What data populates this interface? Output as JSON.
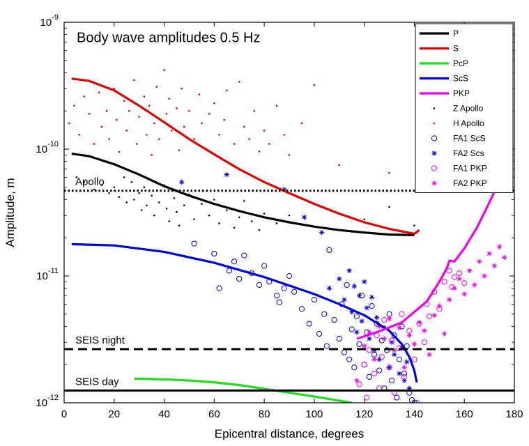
{
  "chart_data": {
    "type": "line",
    "title": "Body wave amplitudes 0.5 Hz",
    "xlabel": "Epicentral distance, degrees",
    "ylabel": "Amplitude, m",
    "xlim": [
      0,
      180
    ],
    "ylim": [
      1e-12,
      1e-09
    ],
    "yscale": "log",
    "xticks": [
      0,
      20,
      40,
      60,
      80,
      100,
      120,
      140,
      160,
      180
    ],
    "yticks": [
      {
        "value": 1e-12,
        "base": "10",
        "exp": "-12"
      },
      {
        "value": 1e-11,
        "base": "10",
        "exp": "-11"
      },
      {
        "value": 1e-10,
        "base": "10",
        "exp": "-10"
      },
      {
        "value": 1e-09,
        "base": "10",
        "exp": "-9"
      }
    ],
    "grid": false,
    "legend_position": "top-right",
    "series": [
      {
        "name": "P",
        "kind": "line",
        "color": "#000000",
        "x": [
          3,
          10,
          20,
          30,
          40,
          50,
          60,
          70,
          80,
          90,
          100,
          110,
          120,
          130,
          140
        ],
        "y": [
          9.2e-11,
          8.8e-11,
          7.6e-11,
          6.3e-11,
          5.1e-11,
          4.3e-11,
          3.7e-11,
          3.25e-11,
          2.9e-11,
          2.65e-11,
          2.45e-11,
          2.3e-11,
          2.2e-11,
          2.12e-11,
          2.1e-11
        ]
      },
      {
        "name": "S",
        "kind": "line",
        "color": "#e00000",
        "x": [
          3,
          10,
          20,
          30,
          40,
          50,
          60,
          70,
          80,
          90,
          100,
          110,
          120,
          130,
          140,
          142
        ],
        "y": [
          3.6e-10,
          3.45e-10,
          2.9e-10,
          2.2e-10,
          1.63e-10,
          1.2e-10,
          9.1e-11,
          6.95e-11,
          5.5e-11,
          4.5e-11,
          3.7e-11,
          3.1e-11,
          2.65e-11,
          2.35e-11,
          2.15e-11,
          2.3e-11
        ]
      },
      {
        "name": "PcP",
        "kind": "line",
        "color": "#22dd22",
        "x": [
          28,
          40,
          50,
          60,
          70,
          80,
          90,
          100,
          110,
          115
        ],
        "y": [
          1.55e-12,
          1.53e-12,
          1.5e-12,
          1.45e-12,
          1.38e-12,
          1.29e-12,
          1.2e-12,
          1.12e-12,
          1.04e-12,
          1e-12
        ]
      },
      {
        "name": "ScS",
        "kind": "line",
        "color": "#0000dd",
        "x": [
          3,
          20,
          40,
          60,
          80,
          100,
          110,
          120,
          130,
          135,
          138,
          140,
          141
        ],
        "y": [
          1.78e-11,
          1.74e-11,
          1.55e-11,
          1.27e-11,
          9.8e-12,
          7.2e-12,
          6e-12,
          4.9e-12,
          3.7e-12,
          2.9e-12,
          2.3e-12,
          1.8e-12,
          1.45e-12
        ]
      },
      {
        "name": "PKP",
        "kind": "line",
        "color": "#ee00ee",
        "x": [
          117,
          125,
          135,
          145,
          150,
          153,
          154,
          156,
          160,
          165,
          170,
          175,
          178
        ],
        "y": [
          3.2e-12,
          3.6e-12,
          4.3e-12,
          6.3e-12,
          9e-12,
          1.15e-11,
          1.32e-11,
          1.3e-11,
          1.65e-11,
          2.4e-11,
          3.8e-11,
          6.2e-11,
          9.5e-11
        ]
      },
      {
        "name": "Z Apollo",
        "kind": "scatter",
        "marker": "dot",
        "color": "#000000",
        "x": [
          5,
          8,
          12,
          15,
          18,
          20,
          22,
          24,
          25,
          27,
          28,
          30,
          31,
          32,
          33,
          35,
          36,
          38,
          40,
          41,
          42,
          44,
          45,
          46,
          48,
          50,
          52,
          55,
          58,
          60,
          62,
          65,
          68,
          70,
          72,
          75,
          78,
          80,
          85,
          90,
          120,
          130,
          140
        ],
        "y": [
          6e-11,
          5.5e-11,
          4.8e-11,
          5.2e-11,
          4.5e-11,
          5e-11,
          4.2e-11,
          6e-11,
          3.8e-11,
          5.5e-11,
          4e-11,
          4.5e-11,
          3.3e-11,
          5e-11,
          3.6e-11,
          4.3e-11,
          3e-11,
          3.8e-11,
          5.2e-11,
          3.4e-11,
          2.7e-11,
          4.1e-11,
          3.2e-11,
          2.5e-11,
          3.6e-11,
          4.4e-11,
          2.8e-11,
          3.7e-11,
          3e-11,
          4e-11,
          2.6e-11,
          3.3e-11,
          2.4e-11,
          2.9e-11,
          3.9e-11,
          2.7e-11,
          2.3e-11,
          3.1e-11,
          2.6e-11,
          3e-11,
          2.8e-11,
          3.5e-11,
          2.5e-11
        ]
      },
      {
        "name": "H Apollo",
        "kind": "scatter",
        "marker": "dot",
        "color": "#e00000",
        "x": [
          2,
          4,
          6,
          8,
          10,
          12,
          14,
          15,
          17,
          18,
          20,
          21,
          22,
          24,
          25,
          26,
          28,
          29,
          30,
          32,
          33,
          34,
          35,
          36,
          37,
          38,
          40,
          41,
          42,
          43,
          45,
          46,
          47,
          48,
          50,
          52,
          54,
          55,
          57,
          58,
          60,
          62,
          64,
          65,
          68,
          70,
          72,
          74,
          76,
          78,
          80,
          82,
          85,
          88,
          90,
          95,
          100,
          110,
          130
        ],
        "y": [
          1.6e-10,
          2.2e-10,
          1.3e-10,
          2.6e-10,
          1.9e-10,
          1.1e-10,
          2.8e-10,
          1.5e-10,
          2e-10,
          1.2e-10,
          3e-10,
          1.7e-10,
          9.5e-11,
          2.4e-10,
          1.4e-10,
          2e-10,
          3.5e-10,
          1.1e-10,
          1.8e-10,
          2.6e-10,
          1.3e-10,
          2.2e-10,
          9e-11,
          1.6e-10,
          3.1e-10,
          1.2e-10,
          4.2e-10,
          1.9e-10,
          2.5e-10,
          1.4e-10,
          2.1e-10,
          9.8e-11,
          3e-10,
          1.5e-10,
          2e-10,
          1.2e-10,
          2.7e-10,
          1.6e-10,
          1e-10,
          1.9e-10,
          2.3e-10,
          1.3e-10,
          1.7e-10,
          2.9e-10,
          1.1e-10,
          3.4e-10,
          1.5e-10,
          1.2e-10,
          2e-10,
          9.6e-11,
          1.4e-10,
          1.1e-10,
          2.2e-10,
          1.3e-10,
          9e-11,
          1.6e-10,
          3.2e-10,
          7.5e-11,
          6.5e-11
        ]
      },
      {
        "name": "FA1 ScS",
        "kind": "scatter",
        "marker": "circle",
        "color": "#0000dd",
        "x": [
          52,
          60,
          62,
          66,
          68,
          70,
          72,
          75,
          78,
          80,
          82,
          85,
          86,
          88,
          90,
          92,
          95,
          98,
          100,
          102,
          104,
          105,
          106,
          108,
          110,
          111,
          112,
          113,
          114,
          115,
          116,
          117,
          118,
          119,
          120,
          121,
          122,
          123,
          124,
          125,
          126,
          127,
          128,
          129,
          130,
          131,
          132,
          133,
          134,
          135,
          136,
          137,
          138,
          139,
          140
        ],
        "y": [
          1.8e-11,
          1.5e-11,
          8e-12,
          1.1e-11,
          1.3e-11,
          9.5e-12,
          1.45e-11,
          1.05e-11,
          8.5e-12,
          1.2e-11,
          9e-12,
          7e-12,
          6.2e-12,
          8e-12,
          1e-11,
          7.5e-12,
          5.5e-12,
          4.2e-12,
          6.5e-12,
          3.5e-12,
          5e-12,
          2.8e-12,
          1.6e-11,
          4.5e-12,
          3.2e-12,
          6e-12,
          2.5e-12,
          8.5e-12,
          2.2e-12,
          3.8e-12,
          1.9e-12,
          4.8e-12,
          2.9e-12,
          7e-12,
          2e-12,
          3.6e-12,
          1.6e-12,
          5.8e-12,
          2.4e-12,
          4.2e-12,
          1.8e-12,
          3.1e-12,
          1.3e-12,
          2.6e-12,
          5e-12,
          1.5e-12,
          3.4e-12,
          1.1e-12,
          2.2e-12,
          4e-12,
          1.7e-12,
          2.8e-12,
          1.2e-12,
          1.05e-12,
          1e-12
        ]
      },
      {
        "name": "FA2 Scs",
        "kind": "scatter",
        "marker": "asterisk",
        "color": "#0000dd",
        "x": [
          47,
          65,
          88,
          96,
          103,
          106,
          110,
          112,
          114,
          115,
          116,
          117,
          118,
          119,
          120,
          121,
          122,
          123,
          124,
          125,
          126,
          128,
          130,
          131,
          132,
          134,
          135,
          136,
          137,
          138
        ],
        "y": [
          5.5e-11,
          6.3e-11,
          4.8e-11,
          2.9e-11,
          2.2e-11,
          8e-12,
          9.5e-12,
          6.5e-12,
          1.1e-11,
          5.2e-12,
          8.3e-12,
          3.6e-12,
          7e-12,
          4.4e-12,
          9e-12,
          5.6e-12,
          3.2e-12,
          6.8e-12,
          2.6e-12,
          4.7e-12,
          2.2e-12,
          3.9e-12,
          1.9e-12,
          3e-12,
          2.4e-12,
          1.7e-12,
          2.7e-12,
          1.5e-12,
          2.1e-12,
          1.3e-12
        ]
      },
      {
        "name": "FA1 PKP",
        "kind": "scatter",
        "marker": "circle",
        "color": "#ee00ee",
        "x": [
          118,
          120,
          121,
          122,
          124,
          125,
          126,
          127,
          128,
          130,
          131,
          132,
          134,
          135,
          136,
          138,
          140,
          141,
          142,
          144,
          145,
          146,
          148,
          150,
          152,
          154,
          155,
          156,
          158,
          160
        ],
        "y": [
          1.4e-12,
          2e-12,
          1.1e-12,
          2.6e-12,
          1.7e-12,
          3.4e-12,
          1.3e-12,
          2.3e-12,
          4.5e-12,
          1.9e-12,
          3.1e-12,
          1.2e-12,
          2.7e-12,
          5e-12,
          1.6e-12,
          3.7e-12,
          2.2e-12,
          1e-12,
          4.2e-12,
          3e-12,
          6e-12,
          4.8e-12,
          7.5e-12,
          5.5e-12,
          9e-12,
          1.1e-11,
          8.2e-12,
          9.8e-12,
          1.05e-11,
          8.8e-12
        ]
      },
      {
        "name": "FA2 PKP",
        "kind": "scatter",
        "marker": "asterisk",
        "color": "#ee00ee",
        "x": [
          117,
          120,
          122,
          124,
          126,
          128,
          130,
          132,
          134,
          136,
          138,
          140,
          142,
          144,
          146,
          148,
          150,
          152,
          154,
          156,
          158,
          160,
          162,
          164,
          166,
          168,
          170,
          172,
          174,
          176
        ],
        "y": [
          1.5e-12,
          2.8e-12,
          3.6e-12,
          2.2e-12,
          4e-12,
          3.2e-12,
          4.6e-12,
          2.6e-12,
          3.9e-12,
          1.9e-12,
          3.4e-12,
          2.9e-12,
          4.3e-12,
          3.7e-12,
          2.4e-12,
          4.9e-12,
          5.8e-12,
          3.5e-12,
          6.5e-12,
          8e-12,
          9.5e-12,
          7.2e-12,
          1.1e-11,
          8.5e-12,
          1.3e-11,
          1e-11,
          1.5e-11,
          1.2e-11,
          1.7e-11,
          1.4e-11
        ]
      }
    ],
    "reference_lines": [
      {
        "label": "Apollo",
        "y": 4.7e-11,
        "style": "dotted"
      },
      {
        "label": "SEIS night",
        "y": 2.65e-12,
        "style": "dashed"
      },
      {
        "label": "SEIS day",
        "y": 1.25e-12,
        "style": "solid"
      }
    ]
  }
}
